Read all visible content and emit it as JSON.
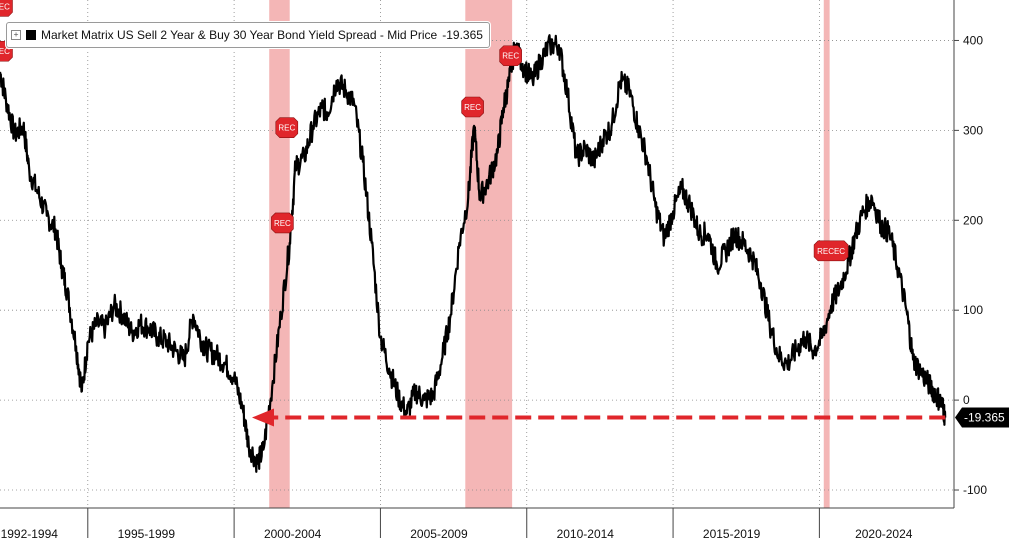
{
  "legend": {
    "label": "Market Matrix US Sell 2 Year & Buy 30 Year Bond Yield Spread - Mid Price",
    "value": "-19.365",
    "icon": "plus-box-icon"
  },
  "last_value_label": "-19.365",
  "colors": {
    "series": "#000000",
    "recession": "#f4b6b6",
    "rec_marker": "#e0262b",
    "arrow": "#e0262b",
    "grid": "#888888"
  },
  "chart_data": {
    "type": "line",
    "title": "",
    "xlabel": "",
    "ylabel": "",
    "xlim": [
      1992.0,
      2024.6
    ],
    "ylim": [
      -120,
      445
    ],
    "y_ticks": [
      400,
      300,
      200,
      100,
      0,
      -100
    ],
    "x_period_labels": [
      "1992-1994",
      "1995-1999",
      "2000-2004",
      "2005-2009",
      "2010-2014",
      "2015-2019",
      "2020-2024"
    ],
    "x_period_centers": [
      1993.0,
      1997.0,
      2002.0,
      2007.0,
      2012.0,
      2017.0,
      2022.2
    ],
    "x_period_boundaries": [
      1995.0,
      2000.0,
      2005.0,
      2010.0,
      2015.0,
      2020.0
    ],
    "recessions": [
      [
        2001.2,
        2001.9
      ],
      [
        2007.9,
        2009.5
      ],
      [
        2020.15,
        2020.35
      ]
    ],
    "rec_markers": [
      {
        "label": "REC",
        "x": 1992.05,
        "y": 438
      },
      {
        "label": "REC",
        "x": 1992.05,
        "y": 388
      },
      {
        "label": "REC",
        "x": 2001.8,
        "y": 303
      },
      {
        "label": "REC",
        "x": 2001.65,
        "y": 197
      },
      {
        "label": "REC",
        "x": 2008.15,
        "y": 326
      },
      {
        "label": "REC",
        "x": 2009.45,
        "y": 383
      },
      {
        "label": "RECEC",
        "x": 2020.4,
        "y": 166
      }
    ],
    "last_value": -19.365,
    "series": [
      {
        "name": "Market Matrix US Sell 2 Year & Buy 30 Year Bond Yield Spread - Mid Price",
        "x": [
          1992.0,
          1992.2,
          1992.5,
          1992.8,
          1993.0,
          1993.3,
          1993.6,
          1993.9,
          1994.1,
          1994.3,
          1994.6,
          1994.8,
          1995.0,
          1995.3,
          1995.6,
          1995.9,
          1996.2,
          1996.5,
          1996.8,
          1997.1,
          1997.4,
          1997.7,
          1998.0,
          1998.3,
          1998.6,
          1998.9,
          1999.1,
          1999.4,
          1999.7,
          2000.0,
          2000.3,
          2000.5,
          2000.8,
          2001.0,
          2001.3,
          2001.6,
          2001.9,
          2002.1,
          2002.4,
          2002.7,
          2003.0,
          2003.2,
          2003.5,
          2003.8,
          2004.1,
          2004.4,
          2004.7,
          2005.0,
          2005.3,
          2005.6,
          2005.9,
          2006.2,
          2006.5,
          2006.8,
          2007.1,
          2007.4,
          2007.7,
          2008.0,
          2008.2,
          2008.4,
          2008.7,
          2009.0,
          2009.2,
          2009.4,
          2009.6,
          2009.9,
          2010.2,
          2010.5,
          2010.8,
          2011.1,
          2011.4,
          2011.7,
          2012.0,
          2012.3,
          2012.6,
          2012.9,
          2013.2,
          2013.5,
          2013.8,
          2014.1,
          2014.4,
          2014.7,
          2015.0,
          2015.3,
          2015.6,
          2015.9,
          2016.2,
          2016.5,
          2016.8,
          2017.1,
          2017.4,
          2017.7,
          2018.0,
          2018.3,
          2018.6,
          2018.9,
          2019.2,
          2019.5,
          2019.8,
          2020.1,
          2020.4,
          2020.7,
          2021.0,
          2021.2,
          2021.5,
          2021.8,
          2022.1,
          2022.4,
          2022.7,
          2023.0,
          2023.2,
          2023.5,
          2023.8,
          2024.0,
          2024.2,
          2024.3
        ],
        "values": [
          365,
          335,
          295,
          305,
          255,
          230,
          205,
          190,
          150,
          120,
          60,
          10,
          65,
          85,
          80,
          105,
          95,
          75,
          85,
          80,
          70,
          65,
          55,
          45,
          95,
          65,
          55,
          50,
          40,
          25,
          -10,
          -50,
          -70,
          -55,
          15,
          95,
          175,
          260,
          270,
          305,
          325,
          320,
          355,
          345,
          330,
          265,
          175,
          70,
          35,
          5,
          -15,
          10,
          0,
          5,
          45,
          95,
          175,
          225,
          305,
          225,
          245,
          275,
          325,
          355,
          395,
          370,
          355,
          380,
          395,
          395,
          340,
          270,
          280,
          265,
          290,
          305,
          355,
          345,
          305,
          270,
          215,
          180,
          210,
          235,
          215,
          185,
          185,
          150,
          165,
          185,
          175,
          160,
          130,
          85,
          50,
          40,
          55,
          70,
          55,
          70,
          105,
          125,
          155,
          180,
          210,
          225,
          195,
          185,
          145,
          95,
          45,
          30,
          15,
          5,
          -5,
          -19.365
        ]
      }
    ]
  }
}
